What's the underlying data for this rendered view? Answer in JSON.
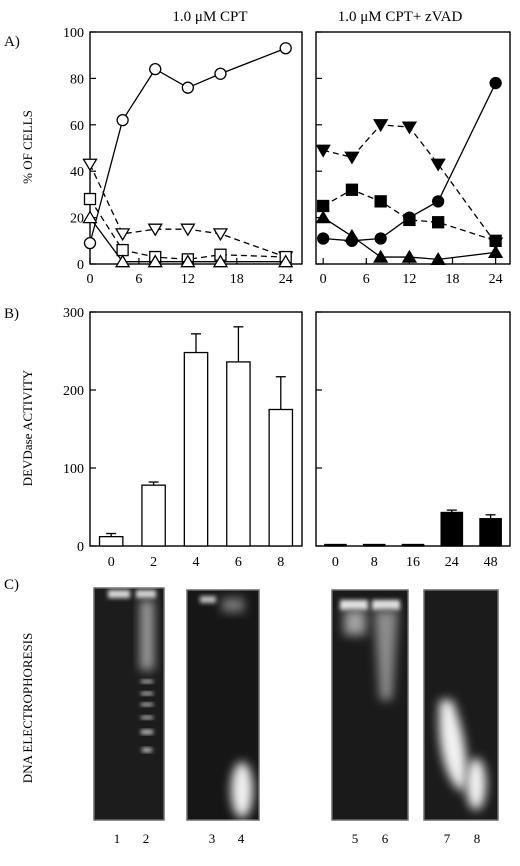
{
  "figure": {
    "title_left": "1.0 μM CPT",
    "title_right": "1.0 μM CPT+ zVAD",
    "panel_a_letter": "A)",
    "panel_b_letter": "B)",
    "panel_c_letter": "C)",
    "ylabel_a": "% OF CELLS",
    "ylabel_b": "DEVDase ACTIVITY",
    "ylabel_c": "DNA ELECTROPHORESIS"
  },
  "chart_data": [
    {
      "id": "a-left",
      "type": "line",
      "title": "1.0 μM CPT",
      "ylabel": "% OF CELLS",
      "xlabel": "",
      "xlim": [
        0,
        26
      ],
      "ylim": [
        0,
        100
      ],
      "xticks": [
        0,
        6,
        12,
        18,
        24
      ],
      "yticks": [
        0,
        20,
        40,
        60,
        80,
        100
      ],
      "series": [
        {
          "marker": "circle-open",
          "dash": "solid",
          "x": [
            0,
            4,
            8,
            12,
            16,
            24
          ],
          "y": [
            9,
            62,
            84,
            76,
            82,
            93
          ]
        },
        {
          "marker": "triangle-down-open",
          "dash": "dashed",
          "x": [
            0,
            4,
            8,
            12,
            16,
            24
          ],
          "y": [
            43,
            13,
            15,
            15,
            13,
            3
          ]
        },
        {
          "marker": "square-open",
          "dash": "dashed",
          "x": [
            0,
            4,
            8,
            12,
            16,
            24
          ],
          "y": [
            28,
            6,
            3,
            2,
            4,
            3
          ]
        },
        {
          "marker": "triangle-up-open",
          "dash": "solid",
          "x": [
            0,
            4,
            8,
            12,
            16,
            24
          ],
          "y": [
            20,
            1,
            1,
            1,
            1,
            1
          ]
        }
      ]
    },
    {
      "id": "a-right",
      "type": "line",
      "title": "1.0 μM CPT+ zVAD",
      "xlabel": "",
      "xlim": [
        -1,
        26
      ],
      "ylim": [
        0,
        100
      ],
      "xticks": [
        0,
        6,
        12,
        18,
        24
      ],
      "yticks": [
        0,
        20,
        40,
        60,
        80,
        100
      ],
      "series": [
        {
          "marker": "circle-filled",
          "dash": "solid",
          "x": [
            0,
            4,
            8,
            12,
            16,
            24
          ],
          "y": [
            11,
            10,
            11,
            20,
            27,
            78
          ]
        },
        {
          "marker": "triangle-down-filled",
          "dash": "dashed",
          "x": [
            0,
            4,
            8,
            12,
            16,
            24
          ],
          "y": [
            49,
            46,
            60,
            59,
            43,
            9
          ]
        },
        {
          "marker": "square-filled",
          "dash": "dashed",
          "x": [
            0,
            4,
            8,
            12,
            16,
            24
          ],
          "y": [
            25,
            32,
            27,
            19,
            18,
            10
          ]
        },
        {
          "marker": "triangle-up-filled",
          "dash": "solid",
          "x": [
            0,
            4,
            8,
            12,
            16,
            24
          ],
          "y": [
            20,
            12,
            3,
            3,
            2,
            5
          ]
        }
      ]
    },
    {
      "id": "b-left",
      "type": "bar",
      "ylabel": "DEVDase ACTIVITY",
      "xlabel": "",
      "categories": [
        "0",
        "2",
        "4",
        "6",
        "8"
      ],
      "values": [
        12,
        78,
        248,
        236,
        175
      ],
      "errors": [
        4,
        4,
        24,
        45,
        42
      ],
      "fill": "open",
      "ylim": [
        0,
        300
      ],
      "yticks": [
        0,
        100,
        200,
        300
      ]
    },
    {
      "id": "b-right",
      "type": "bar",
      "xlabel": "",
      "categories": [
        "0",
        "8",
        "16",
        "24",
        "48"
      ],
      "values": [
        0,
        0,
        0,
        43,
        35
      ],
      "errors": [
        0,
        0,
        0,
        3,
        5
      ],
      "fill": "filled",
      "ylim": [
        0,
        300
      ],
      "yticks": [
        0,
        100,
        200,
        300
      ]
    }
  ],
  "gel": {
    "lanes": [
      "1",
      "2",
      "3",
      "4",
      "5",
      "6",
      "7",
      "8"
    ]
  },
  "colors": {
    "ink": "#000000",
    "gel_bg": "#141414",
    "band": "#f2f2f2"
  }
}
